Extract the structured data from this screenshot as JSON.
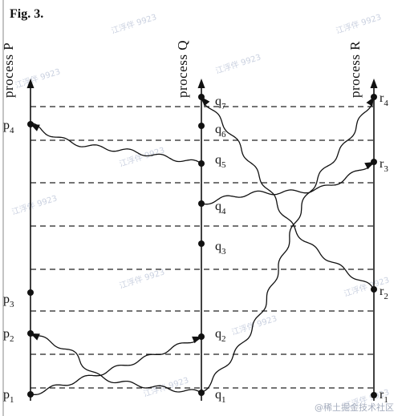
{
  "figure": {
    "title": "Fig. 3."
  },
  "processes": [
    {
      "key": "P",
      "label": "process P"
    },
    {
      "key": "Q",
      "label": "process Q"
    },
    {
      "key": "R",
      "label": "process R"
    }
  ],
  "events": {
    "P": [
      {
        "name": "p",
        "sub": "1"
      },
      {
        "name": "p",
        "sub": "2"
      },
      {
        "name": "p",
        "sub": "3"
      },
      {
        "name": "p",
        "sub": "4"
      }
    ],
    "Q": [
      {
        "name": "q",
        "sub": "1"
      },
      {
        "name": "q",
        "sub": "2"
      },
      {
        "name": "q",
        "sub": "3"
      },
      {
        "name": "q",
        "sub": "4"
      },
      {
        "name": "q",
        "sub": "5"
      },
      {
        "name": "q",
        "sub": "6"
      },
      {
        "name": "q",
        "sub": "7"
      }
    ],
    "R": [
      {
        "name": "r",
        "sub": "1"
      },
      {
        "name": "r",
        "sub": "2"
      },
      {
        "name": "r",
        "sub": "3"
      },
      {
        "name": "r",
        "sub": "4"
      }
    ]
  },
  "messages": [
    {
      "from": "p1",
      "to": "q2"
    },
    {
      "from": "q1",
      "to": "p2"
    },
    {
      "from": "q1",
      "to": "r4"
    },
    {
      "from": "q4",
      "to": "r3"
    },
    {
      "from": "q5",
      "to": "p4"
    },
    {
      "from": "r2",
      "to": "q7"
    }
  ],
  "watermarks": [
    "江浮伴 9923",
    "@稀土掘金技术社区"
  ]
}
